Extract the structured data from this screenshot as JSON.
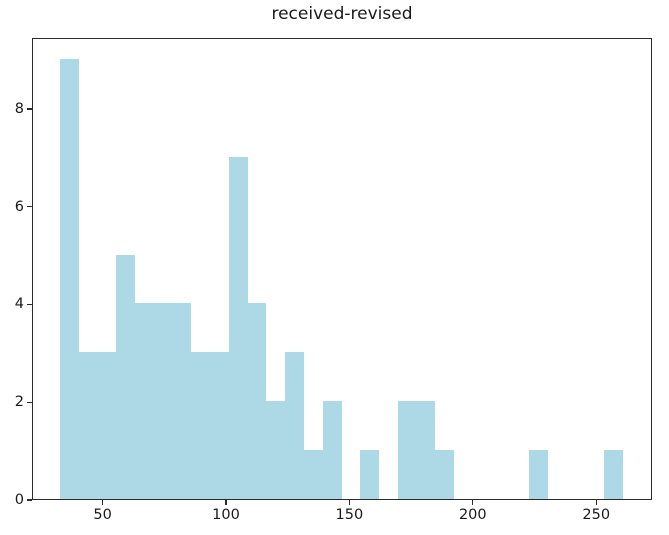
{
  "chart_data": {
    "type": "bar",
    "subtype": "histogram",
    "title": "received-revised",
    "xlabel": "",
    "ylabel": "",
    "bar_color": "#ADD8E6",
    "axis_color": "#2b2b2b",
    "text_color": "#1a1a1a",
    "grid": false,
    "legend": false,
    "xlim": [
      21.4,
      272.6
    ],
    "ylim": [
      0,
      9.45
    ],
    "xticks": [
      50,
      100,
      150,
      200,
      250
    ],
    "yticks": [
      0,
      2,
      4,
      6,
      8
    ],
    "n_bins": 30,
    "bin_start": 32.3,
    "bin_width": 7.607,
    "bin_edges": [
      32.3,
      39.9,
      47.5,
      55.1,
      62.7,
      70.3,
      78.0,
      85.6,
      93.2,
      100.8,
      108.4,
      116.0,
      123.6,
      131.2,
      138.8,
      146.4,
      154.0,
      161.6,
      169.2,
      176.8,
      184.4,
      192.0,
      199.6,
      207.2,
      214.8,
      222.5,
      230.1,
      237.7,
      245.3,
      252.9,
      260.5
    ],
    "counts": [
      9,
      3,
      3,
      5,
      4,
      4,
      4,
      3,
      3,
      7,
      4,
      2,
      3,
      1,
      2,
      0,
      1,
      0,
      2,
      2,
      1,
      0,
      0,
      0,
      0,
      1,
      0,
      0,
      0,
      1
    ]
  }
}
